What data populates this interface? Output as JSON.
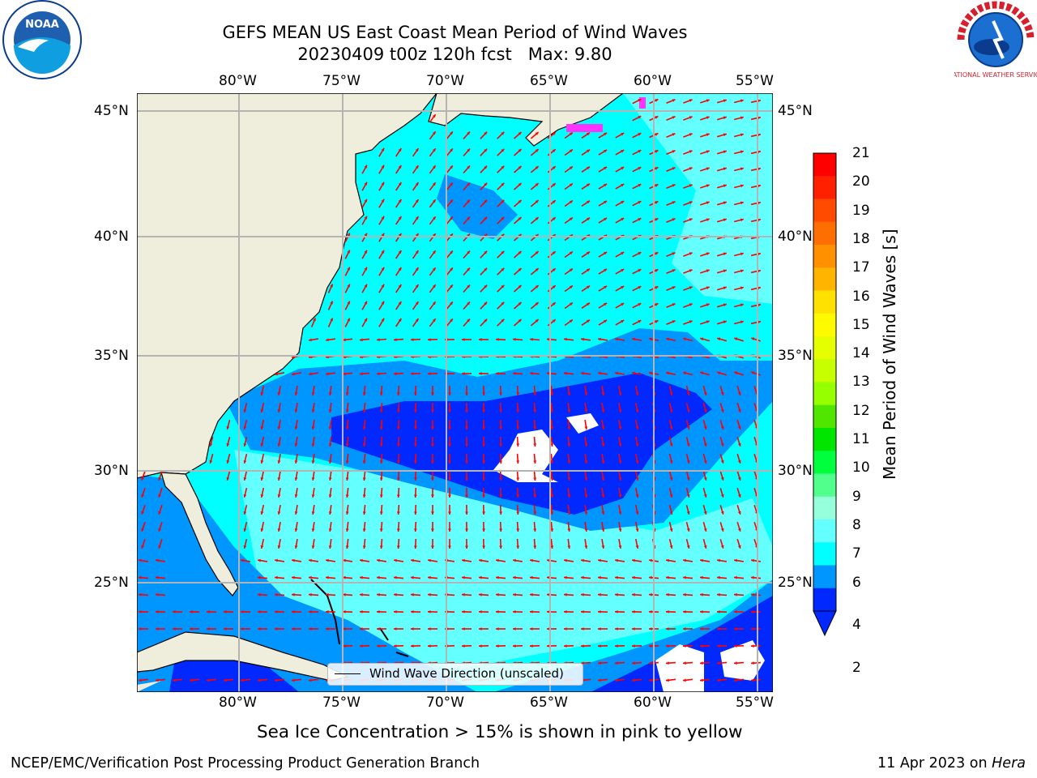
{
  "title": {
    "line1": "GEFS MEAN US East Coast Mean Period of Wind Waves",
    "line2": "20230409 t00z 120h fcst   Max: 9.80"
  },
  "map": {
    "lon_ticks_top": [
      "80°W",
      "75°W",
      "70°W",
      "65°W",
      "60°W",
      "55°W"
    ],
    "lon_ticks_bottom": [
      "80°W",
      "75°W",
      "70°W",
      "65°W",
      "60°W",
      "55°W"
    ],
    "lat_ticks_left": [
      "45°N",
      "40°N",
      "35°N",
      "30°N",
      "25°N"
    ],
    "lat_ticks_right": [
      "45°N",
      "40°N",
      "35°N",
      "30°N",
      "25°N"
    ],
    "legend": "Wind Wave Direction (unscaled)",
    "colors": {
      "land": "#efeedc",
      "ocean_fill": "#00ffff",
      "arrow": "#ff0000",
      "grid": "#b4b4b4",
      "sea_ice": "#ff33ff"
    }
  },
  "colorbar": {
    "label": "Mean Period of Wind Waves [s]",
    "ticks": [
      "21",
      "20",
      "19",
      "18",
      "17",
      "16",
      "15",
      "14",
      "13",
      "12",
      "11",
      "10",
      "9",
      "8",
      "7",
      "6",
      "4",
      "2"
    ],
    "colors_top_to_bottom": [
      "#ff0000",
      "#ff2000",
      "#ff4b00",
      "#ff6e00",
      "#ff9100",
      "#ffb400",
      "#ffe100",
      "#fffa00",
      "#e6ff00",
      "#c8ff00",
      "#96ff00",
      "#50e600",
      "#00e600",
      "#00ff3c",
      "#50ff8c",
      "#96ffdc",
      "#64ffff",
      "#00ffff",
      "#0096ff",
      "#0028ff"
    ]
  },
  "note": "Sea Ice Concentration > 15% is shown in pink to yellow",
  "footer": {
    "left": "NCEP/EMC/Verification Post Processing Product Generation Branch",
    "date": "11 Apr 2023 on ",
    "machine": "Hera"
  },
  "logos": {
    "left": "NOAA",
    "right": "NATIONAL WEATHER SERVICE"
  }
}
